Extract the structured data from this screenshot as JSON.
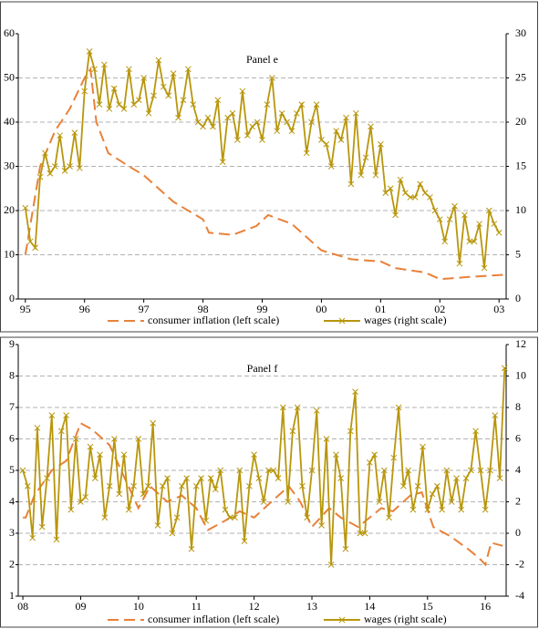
{
  "chart_data": [
    {
      "type": "line",
      "title": "Panel e",
      "xlim": [
        1994.88,
        2003.12
      ],
      "xticks": [
        {
          "value": 1995,
          "label": "95"
        },
        {
          "value": 1996,
          "label": "96"
        },
        {
          "value": 1997,
          "label": "97"
        },
        {
          "value": 1998,
          "label": "98"
        },
        {
          "value": 1999,
          "label": "99"
        },
        {
          "value": 2000,
          "label": "00"
        },
        {
          "value": 2001,
          "label": "01"
        },
        {
          "value": 2002,
          "label": "02"
        },
        {
          "value": 2003,
          "label": "03"
        }
      ],
      "ylim": [
        0,
        60
      ],
      "yticks": [
        0,
        10,
        20,
        30,
        40,
        50,
        60
      ],
      "y2lim": [
        0,
        30
      ],
      "y2ticks": [
        0,
        5,
        10,
        15,
        20,
        25,
        30
      ],
      "grid": true,
      "series": [
        {
          "name": "consumer inflation (left scale)",
          "color": "#e8813a",
          "dash": true,
          "x": [
            1995.0,
            1995.25,
            1995.5,
            1995.75,
            1996.0,
            1996.1,
            1996.2,
            1996.4,
            1996.75,
            1997.0,
            1997.5,
            1998.0,
            1998.1,
            1998.5,
            1998.9,
            1999.1,
            1999.5,
            2000.0,
            2000.5,
            2001.0,
            2001.25,
            2001.75,
            2002.0,
            2002.5,
            2003.1
          ],
          "values": [
            10,
            30,
            38,
            43,
            50,
            52,
            40,
            33,
            30,
            28,
            22,
            18,
            15,
            14.5,
            16.5,
            19,
            17,
            11,
            9,
            8.5,
            7,
            6,
            4.5,
            5,
            5.5
          ]
        },
        {
          "name": "wages (right scale)",
          "color": "#b8960c",
          "axis": "y2",
          "marker": true,
          "x": [
            1995.0,
            1995.083,
            1995.167,
            1995.25,
            1995.333,
            1995.417,
            1995.5,
            1995.583,
            1995.667,
            1995.75,
            1995.833,
            1995.917,
            1996.0,
            1996.083,
            1996.167,
            1996.25,
            1996.333,
            1996.417,
            1996.5,
            1996.583,
            1996.667,
            1996.75,
            1996.833,
            1996.917,
            1997.0,
            1997.083,
            1997.167,
            1997.25,
            1997.333,
            1997.417,
            1997.5,
            1997.583,
            1997.667,
            1997.75,
            1997.833,
            1997.917,
            1998.0,
            1998.083,
            1998.167,
            1998.25,
            1998.333,
            1998.417,
            1998.5,
            1998.583,
            1998.667,
            1998.75,
            1998.833,
            1998.917,
            1999.0,
            1999.083,
            1999.167,
            1999.25,
            1999.333,
            1999.417,
            1999.5,
            1999.583,
            1999.667,
            1999.75,
            1999.833,
            1999.917,
            2000.0,
            2000.083,
            2000.167,
            2000.25,
            2000.333,
            2000.417,
            2000.5,
            2000.583,
            2000.667,
            2000.75,
            2000.833,
            2000.917,
            2001.0,
            2001.083,
            2001.167,
            2001.25,
            2001.333,
            2001.417,
            2001.5,
            2001.583,
            2001.667,
            2001.75,
            2001.833,
            2001.917,
            2002.0,
            2002.083,
            2002.167,
            2002.25,
            2002.333,
            2002.417,
            2002.5,
            2002.583,
            2002.667,
            2002.75,
            2002.833,
            2002.917,
            2003.0
          ],
          "values": [
            10.3,
            6.5,
            5.8,
            13.8,
            16.5,
            14.2,
            15,
            18.5,
            14.5,
            15,
            18.8,
            14.8,
            23.5,
            28,
            26,
            22,
            26.5,
            21.5,
            23.8,
            22,
            21.5,
            26,
            22,
            22.5,
            25,
            21,
            23,
            27,
            24,
            23,
            25.5,
            20.5,
            22.5,
            26,
            22,
            20,
            19.5,
            20.5,
            19.5,
            22.5,
            15.5,
            20.5,
            21,
            18,
            23.5,
            18.5,
            19.5,
            20,
            18,
            22,
            25,
            19,
            21,
            20,
            19,
            21,
            22,
            16.5,
            20,
            22,
            18,
            17.5,
            15,
            19,
            18,
            20.5,
            13,
            21,
            14,
            16,
            19.5,
            14,
            17.5,
            12,
            12.5,
            9.5,
            13.5,
            12,
            11.5,
            11.5,
            13,
            12,
            11.5,
            10,
            9,
            6.5,
            9,
            10.5,
            4,
            9.5,
            6.5,
            6.5,
            8.5,
            3.5,
            10,
            8.5,
            7.5
          ]
        }
      ]
    },
    {
      "type": "line",
      "title": "Panel f",
      "xlim": [
        2007.92,
        2016.36
      ],
      "xticks": [
        {
          "value": 2008,
          "label": "08"
        },
        {
          "value": 2009,
          "label": "09"
        },
        {
          "value": 2010,
          "label": "10"
        },
        {
          "value": 2011,
          "label": "11"
        },
        {
          "value": 2012,
          "label": "12"
        },
        {
          "value": 2013,
          "label": "13"
        },
        {
          "value": 2014,
          "label": "14"
        },
        {
          "value": 2015,
          "label": "15"
        },
        {
          "value": 2016,
          "label": "16"
        }
      ],
      "ylim": [
        1,
        9
      ],
      "yticks": [
        1,
        2,
        3,
        4,
        5,
        6,
        7,
        8,
        9
      ],
      "y2lim": [
        -4,
        12
      ],
      "y2ticks": [
        -4,
        -2,
        0,
        2,
        4,
        6,
        8,
        10,
        12
      ],
      "grid": true,
      "series": [
        {
          "name": "consumer inflation (left scale)",
          "color": "#e8813a",
          "dash": true,
          "x": [
            2008.0,
            2008.05,
            2008.2,
            2008.5,
            2008.75,
            2009.0,
            2009.2,
            2009.5,
            2009.7,
            2010.0,
            2010.2,
            2010.5,
            2010.75,
            2011.0,
            2011.2,
            2011.5,
            2011.75,
            2012.0,
            2012.3,
            2012.6,
            2012.8,
            2013.0,
            2013.3,
            2013.5,
            2013.8,
            2014.2,
            2014.4,
            2014.7,
            2014.9,
            2015.1,
            2015.4,
            2015.7,
            2015.9,
            2016.0,
            2016.1,
            2016.3
          ],
          "values": [
            3.5,
            3.5,
            4.2,
            5.0,
            5.3,
            6.5,
            6.3,
            5.8,
            5.0,
            3.8,
            4.5,
            4.0,
            4.2,
            3.8,
            3.1,
            3.4,
            3.7,
            3.5,
            4.0,
            4.5,
            4.0,
            3.2,
            3.8,
            3.5,
            3.2,
            3.8,
            3.7,
            4.2,
            4.3,
            3.2,
            2.9,
            2.5,
            2.2,
            2.0,
            2.7,
            2.6
          ]
        },
        {
          "name": "wages (right scale)",
          "color": "#b8960c",
          "axis": "y2",
          "marker": true,
          "x": [
            2008.0,
            2008.083,
            2008.167,
            2008.25,
            2008.333,
            2008.417,
            2008.5,
            2008.583,
            2008.667,
            2008.75,
            2008.833,
            2008.917,
            2009.0,
            2009.083,
            2009.167,
            2009.25,
            2009.333,
            2009.417,
            2009.5,
            2009.583,
            2009.667,
            2009.75,
            2009.833,
            2009.917,
            2010.0,
            2010.083,
            2010.167,
            2010.25,
            2010.333,
            2010.417,
            2010.5,
            2010.583,
            2010.667,
            2010.75,
            2010.833,
            2010.917,
            2011.0,
            2011.083,
            2011.167,
            2011.25,
            2011.333,
            2011.417,
            2011.5,
            2011.583,
            2011.667,
            2011.75,
            2011.833,
            2011.917,
            2012.0,
            2012.083,
            2012.167,
            2012.25,
            2012.333,
            2012.417,
            2012.5,
            2012.583,
            2012.667,
            2012.75,
            2012.833,
            2012.917,
            2013.0,
            2013.083,
            2013.167,
            2013.25,
            2013.333,
            2013.417,
            2013.5,
            2013.583,
            2013.667,
            2013.75,
            2013.833,
            2013.917,
            2014.0,
            2014.083,
            2014.167,
            2014.25,
            2014.333,
            2014.417,
            2014.5,
            2014.583,
            2014.667,
            2014.75,
            2014.833,
            2014.917,
            2015.0,
            2015.083,
            2015.167,
            2015.25,
            2015.333,
            2015.417,
            2015.5,
            2015.583,
            2015.667,
            2015.75,
            2015.833,
            2015.917,
            2016.0,
            2016.083,
            2016.167,
            2016.25,
            2016.333
          ],
          "values": [
            4.0,
            3.0,
            -0.3,
            6.7,
            0.4,
            3.5,
            7.5,
            -0.4,
            6.5,
            7.5,
            1.5,
            6.0,
            2.0,
            2.3,
            5.5,
            3.5,
            5.0,
            1.0,
            3.0,
            6.0,
            2.5,
            5.0,
            1.5,
            3.0,
            6.0,
            2.5,
            3.0,
            7.0,
            0.5,
            3.0,
            3.5,
            0.0,
            1.0,
            3.0,
            3.5,
            -1.0,
            3.0,
            3.5,
            0.8,
            3.5,
            2.8,
            4.0,
            1.5,
            1.0,
            1.0,
            4.0,
            -0.5,
            3.0,
            5.0,
            3.5,
            2.0,
            4.0,
            4.0,
            3.5,
            8.0,
            2.0,
            6.5,
            8.0,
            3.0,
            1.0,
            4.0,
            7.8,
            0.5,
            6.0,
            -2.0,
            5.0,
            3.5,
            -1.0,
            6.5,
            9.0,
            0.0,
            0.0,
            4.5,
            5.0,
            2.0,
            4.0,
            1.0,
            4.8,
            8.0,
            3.0,
            4.0,
            1.5,
            3.0,
            5.5,
            1.5,
            2.5,
            3.0,
            1.5,
            4.0,
            2.0,
            3.5,
            1.5,
            3.5,
            4.0,
            6.5,
            4.0,
            1.5,
            4.0,
            7.5,
            3.5,
            10.5
          ]
        }
      ]
    }
  ]
}
